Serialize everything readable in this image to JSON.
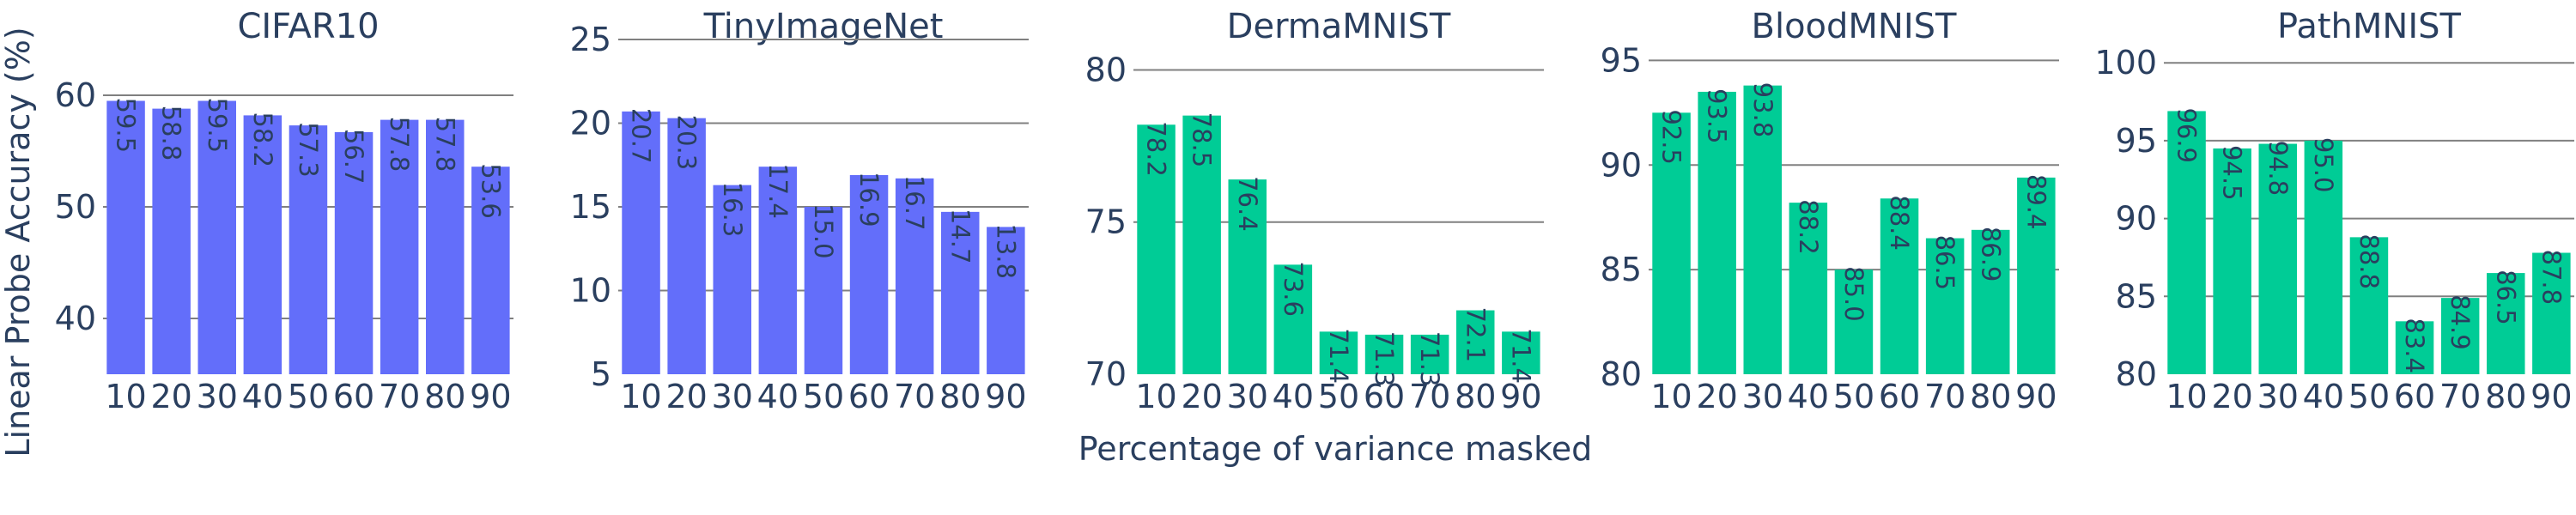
{
  "figure": {
    "xlabel": "Percentage of variance masked",
    "ylabel": "Linear Probe Accuracy (%)"
  },
  "chart_data": [
    {
      "type": "bar",
      "title": "CIFAR10",
      "categories": [
        "10",
        "20",
        "30",
        "40",
        "50",
        "60",
        "70",
        "80",
        "90"
      ],
      "values": [
        59.5,
        58.8,
        59.5,
        58.2,
        57.3,
        56.7,
        57.8,
        57.8,
        53.6
      ],
      "value_labels": [
        "59.5",
        "58.8",
        "59.5",
        "58.2",
        "57.3",
        "56.7",
        "57.8",
        "57.8",
        "53.6"
      ],
      "ylim": [
        35,
        65
      ],
      "yticks": [
        40,
        50,
        60
      ],
      "color": "#636efa",
      "grid": true
    },
    {
      "type": "bar",
      "title": "TinyImageNet",
      "categories": [
        "10",
        "20",
        "30",
        "40",
        "50",
        "60",
        "70",
        "80",
        "90"
      ],
      "values": [
        20.7,
        20.3,
        16.3,
        17.4,
        15.0,
        16.9,
        16.7,
        14.7,
        13.8
      ],
      "value_labels": [
        "20.7",
        "20.3",
        "16.3",
        "17.4",
        "15.0",
        "16.9",
        "16.7",
        "14.7",
        "13.8"
      ],
      "ylim": [
        5,
        25
      ],
      "yticks": [
        5,
        10,
        15,
        20,
        25
      ],
      "color": "#636efa",
      "grid": true
    },
    {
      "type": "bar",
      "title": "DermaMNIST",
      "categories": [
        "10",
        "20",
        "30",
        "40",
        "50",
        "60",
        "70",
        "80",
        "90"
      ],
      "values": [
        78.2,
        78.5,
        76.4,
        73.6,
        71.4,
        71.3,
        71.3,
        72.1,
        71.4
      ],
      "value_labels": [
        "78.2",
        "78.5",
        "76.4",
        "73.6",
        "71.4",
        "71.3",
        "71.3",
        "72.1",
        "71.4"
      ],
      "ylim": [
        70,
        81
      ],
      "yticks": [
        70,
        75,
        80
      ],
      "color": "#00cc96",
      "grid": true
    },
    {
      "type": "bar",
      "title": "BloodMNIST",
      "categories": [
        "10",
        "20",
        "30",
        "40",
        "50",
        "60",
        "70",
        "80",
        "90"
      ],
      "values": [
        92.5,
        93.5,
        93.8,
        88.2,
        85.0,
        88.4,
        86.5,
        86.9,
        89.4
      ],
      "value_labels": [
        "92.5",
        "93.5",
        "93.8",
        "88.2",
        "85.0",
        "88.4",
        "86.5",
        "86.9",
        "89.4"
      ],
      "ylim": [
        80,
        96
      ],
      "yticks": [
        80,
        85,
        90,
        95
      ],
      "color": "#00cc96",
      "grid": true
    },
    {
      "type": "bar",
      "title": "PathMNIST",
      "categories": [
        "10",
        "20",
        "30",
        "40",
        "50",
        "60",
        "70",
        "80",
        "90"
      ],
      "values": [
        96.9,
        94.5,
        94.8,
        95.0,
        88.8,
        83.4,
        84.9,
        86.5,
        87.8
      ],
      "value_labels": [
        "96.9",
        "94.5",
        "94.8",
        "95.0",
        "88.8",
        "83.4",
        "84.9",
        "86.5",
        "87.8"
      ],
      "ylim": [
        80,
        101.5
      ],
      "yticks": [
        80,
        85,
        90,
        95,
        100
      ],
      "color": "#00cc96",
      "grid": true
    }
  ]
}
